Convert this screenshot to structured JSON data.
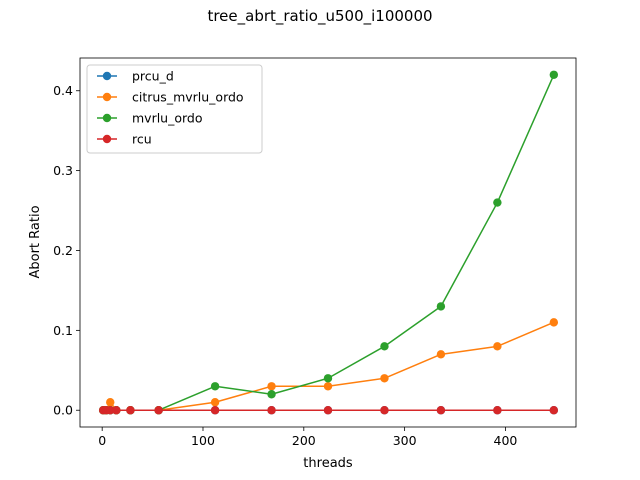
{
  "chart_data": {
    "type": "line",
    "title": "tree_abrt_ratio_u500_i100000",
    "xlabel": "threads",
    "ylabel": "Abort Ratio",
    "xlim": [
      -22,
      470
    ],
    "ylim": [
      -0.021,
      0.441
    ],
    "xticks": [
      0,
      100,
      200,
      300,
      400
    ],
    "yticks": [
      0.0,
      0.1,
      0.2,
      0.3,
      0.4
    ],
    "ytick_labels": [
      "0.0",
      "0.1",
      "0.2",
      "0.3",
      "0.4"
    ],
    "grid": false,
    "legend_position": "upper-left",
    "x": [
      1,
      4,
      8,
      14,
      28,
      56,
      112,
      168,
      224,
      280,
      336,
      392,
      448
    ],
    "series": [
      {
        "name": "prcu_d",
        "color": "#1f77b4",
        "values": [
          0,
          0,
          0,
          0,
          0,
          0,
          0,
          0,
          0,
          0,
          0,
          0,
          0
        ]
      },
      {
        "name": "citrus_mvrlu_ordo",
        "color": "#ff7f0e",
        "values": [
          0,
          0,
          0.01,
          0,
          0,
          0,
          0.01,
          0.03,
          0.03,
          0.04,
          0.07,
          0.08,
          0.11
        ]
      },
      {
        "name": "mvrlu_ordo",
        "color": "#2ca02c",
        "values": [
          0,
          0,
          0,
          0,
          0,
          0,
          0.03,
          0.02,
          0.04,
          0.08,
          0.13,
          0.26,
          0.42
        ]
      },
      {
        "name": "rcu",
        "color": "#d62728",
        "values": [
          0,
          0,
          0,
          0,
          0,
          0,
          0,
          0,
          0,
          0,
          0,
          0,
          0
        ]
      }
    ]
  }
}
